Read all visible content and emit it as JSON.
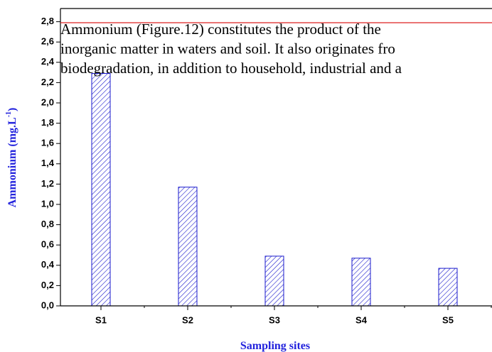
{
  "chart_data": {
    "type": "bar",
    "categories": [
      "S1",
      "S2",
      "S3",
      "S4",
      "S5"
    ],
    "values": [
      2.29,
      1.17,
      0.49,
      0.47,
      0.37
    ],
    "color": "#1a1acc",
    "ylim": [
      0,
      2.93
    ],
    "yticks": [
      {
        "value": 0,
        "label": "0,0"
      },
      {
        "value": 0.2,
        "label": "0,2"
      },
      {
        "value": 0.4,
        "label": "0,4"
      },
      {
        "value": 0.6,
        "label": "0,6"
      },
      {
        "value": 0.8,
        "label": "0,8"
      },
      {
        "value": 1.0,
        "label": "1,0"
      },
      {
        "value": 1.2,
        "label": "1,2"
      },
      {
        "value": 1.4,
        "label": "1,4"
      },
      {
        "value": 1.6,
        "label": "1,6"
      },
      {
        "value": 1.8,
        "label": "1,8"
      },
      {
        "value": 2.0,
        "label": "2,0"
      },
      {
        "value": 2.2,
        "label": "2,2"
      },
      {
        "value": 2.4,
        "label": "2,4"
      },
      {
        "value": 2.6,
        "label": "2,6"
      },
      {
        "value": 2.8,
        "label": "2,8"
      }
    ],
    "x_label": "Sampling sites",
    "y_label": [
      "Ammonium (mg.L",
      "-1",
      ")"
    ],
    "reference_line": {
      "value": 2.79,
      "color": "#dd2222"
    },
    "overlay_text": [
      "Ammonium (Figure.12) constitutes the product of the",
      "inorganic matter in waters and soil. It also originates fro",
      "biodegradation, in addition to household, industrial and a"
    ]
  }
}
